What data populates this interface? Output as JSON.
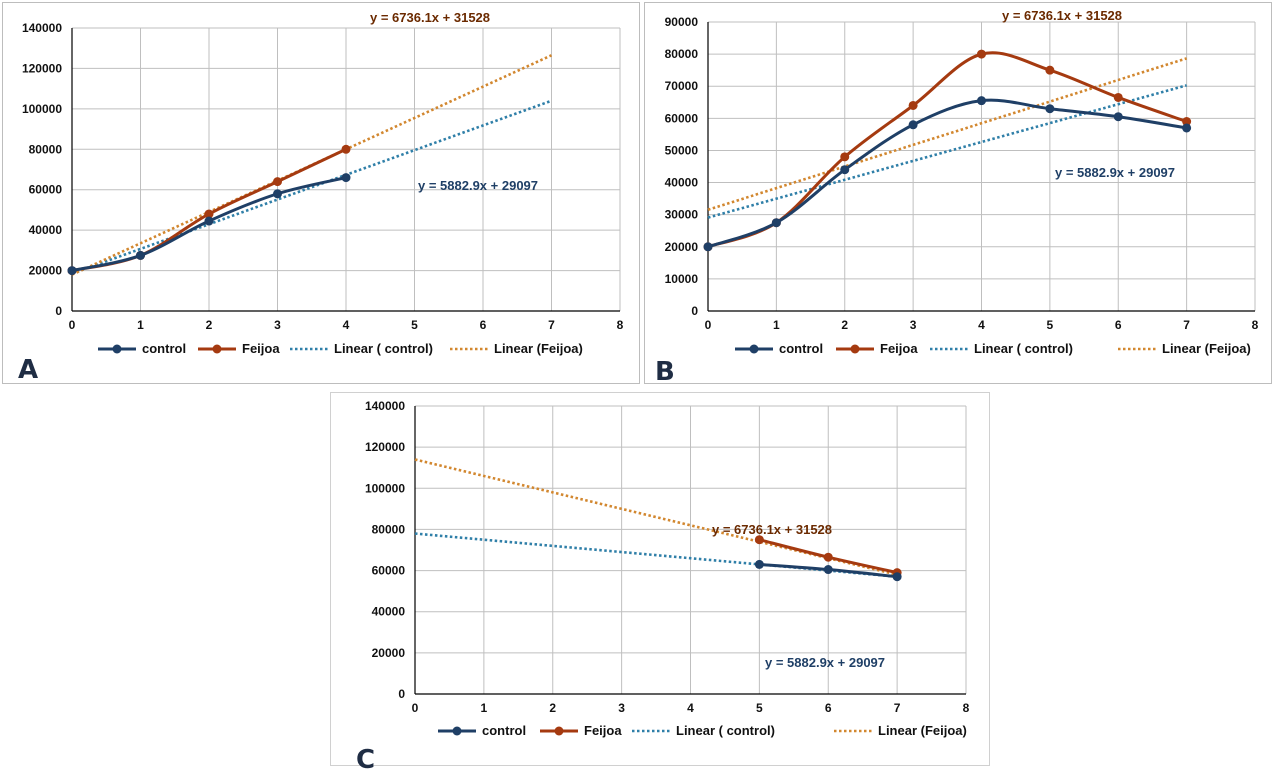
{
  "colors": {
    "control": "#1f3f66",
    "feijoa": "#a53a10",
    "control_trend": "#2f7fa8",
    "feijoa_trend": "#d2872f",
    "grid": "#bfbfbf",
    "axis": "#000000",
    "eq_feijoa": "#6b2a00",
    "eq_control": "#1f3f66"
  },
  "legend": {
    "control": "control",
    "feijoa": "Feijoa",
    "linear_control": "Linear ( control)",
    "linear_feijoa": "Linear (Feijoa)"
  },
  "chart_data": [
    {
      "panel": "A",
      "type": "line",
      "xlim": [
        0,
        8
      ],
      "ylim": [
        0,
        140000
      ],
      "xticks": [
        0,
        1,
        2,
        3,
        4,
        5,
        6,
        7,
        8
      ],
      "yticks": [
        0,
        20000,
        40000,
        60000,
        80000,
        100000,
        120000,
        140000
      ],
      "series": [
        {
          "name": "control",
          "x": [
            0,
            1,
            2,
            3,
            4
          ],
          "y": [
            20000,
            27500,
            44500,
            58000,
            66000
          ]
        },
        {
          "name": "Feijoa",
          "x": [
            0,
            1,
            2,
            3,
            4
          ],
          "y": [
            20000,
            27500,
            48000,
            64000,
            80000
          ]
        }
      ],
      "trendlines": [
        {
          "name": "Linear ( control)",
          "x": [
            0,
            7
          ],
          "y": [
            18500,
            104000
          ]
        },
        {
          "name": "Linear (Feijoa)",
          "x": [
            0,
            7
          ],
          "y": [
            18000,
            126500
          ]
        }
      ],
      "equations": {
        "feijoa": "y = 6736.1x + 31528",
        "control": "y = 5882.9x + 29097"
      },
      "grid": true,
      "legend_position": "bottom"
    },
    {
      "panel": "B",
      "type": "line",
      "xlim": [
        0,
        8
      ],
      "ylim": [
        0,
        90000
      ],
      "xticks": [
        0,
        1,
        2,
        3,
        4,
        5,
        6,
        7,
        8
      ],
      "yticks": [
        0,
        10000,
        20000,
        30000,
        40000,
        50000,
        60000,
        70000,
        80000,
        90000
      ],
      "series": [
        {
          "name": "control",
          "x": [
            0,
            1,
            2,
            3,
            4,
            5,
            6,
            7
          ],
          "y": [
            20000,
            27500,
            44000,
            58000,
            65500,
            63000,
            60500,
            57000
          ]
        },
        {
          "name": "Feijoa",
          "x": [
            0,
            1,
            2,
            3,
            4,
            5,
            6,
            7
          ],
          "y": [
            20000,
            27500,
            48000,
            64000,
            80000,
            75000,
            66500,
            59000
          ]
        }
      ],
      "trendlines": [
        {
          "name": "Linear ( control)",
          "x": [
            0,
            7
          ],
          "y": [
            29097,
            70277
          ]
        },
        {
          "name": "Linear (Feijoa)",
          "x": [
            0,
            7
          ],
          "y": [
            31528,
            78681
          ]
        }
      ],
      "equations": {
        "feijoa": "y = 6736.1x + 31528",
        "control": "y = 5882.9x + 29097"
      },
      "grid": true,
      "legend_position": "bottom"
    },
    {
      "panel": "C",
      "type": "line",
      "xlim": [
        0,
        8
      ],
      "ylim": [
        0,
        140000
      ],
      "xticks": [
        0,
        1,
        2,
        3,
        4,
        5,
        6,
        7,
        8
      ],
      "yticks": [
        0,
        20000,
        40000,
        60000,
        80000,
        100000,
        120000,
        140000
      ],
      "series": [
        {
          "name": "control",
          "x": [
            5,
            6,
            7
          ],
          "y": [
            63000,
            60500,
            57000
          ]
        },
        {
          "name": "Feijoa",
          "x": [
            5,
            6,
            7
          ],
          "y": [
            75000,
            66500,
            59000
          ]
        }
      ],
      "trendlines": [
        {
          "name": "Linear ( control)",
          "x": [
            0,
            7
          ],
          "y": [
            78000,
            57000
          ]
        },
        {
          "name": "Linear (Feijoa)",
          "x": [
            0,
            7
          ],
          "y": [
            114000,
            58000
          ]
        }
      ],
      "equations": {
        "feijoa": "y = 6736.1x + 31528",
        "control": "y = 5882.9x + 29097"
      },
      "grid": true,
      "legend_position": "bottom"
    }
  ]
}
